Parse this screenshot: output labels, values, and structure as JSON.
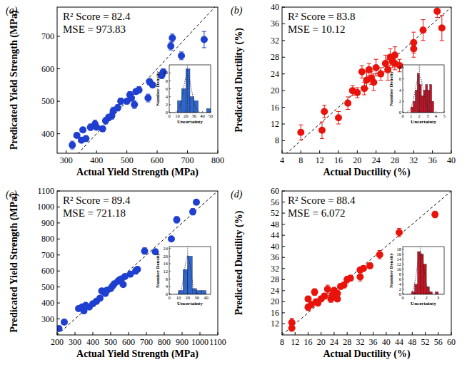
{
  "chart_data": [
    {
      "type": "scatter",
      "title": "(a)",
      "x_label": "Actual Yield Strength (MPa)",
      "y_label": "Predicated Yield Strength (MPa)",
      "annotations": [
        "R² Score = 82.4",
        "MSE = 973.83"
      ],
      "color": "#1f3fd0",
      "marker": "circle",
      "grid": false,
      "xlim": [
        270,
        800
      ],
      "xticks": [
        300,
        400,
        500,
        600,
        700,
        800
      ],
      "ylim": [
        340,
        790
      ],
      "yticks": [
        400,
        500,
        600,
        700
      ],
      "x": [
        320,
        335,
        350,
        355,
        365,
        380,
        395,
        400,
        420,
        430,
        440,
        450,
        455,
        470,
        480,
        500,
        510,
        515,
        525,
        530,
        540,
        570,
        575,
        585,
        615,
        620,
        645,
        650,
        680,
        755
      ],
      "values": [
        365,
        395,
        380,
        412,
        385,
        420,
        430,
        420,
        415,
        440,
        450,
        455,
        470,
        480,
        500,
        500,
        520,
        510,
        490,
        530,
        535,
        510,
        560,
        550,
        580,
        590,
        670,
        695,
        640,
        690
      ],
      "errors": [
        12,
        8,
        8,
        8,
        8,
        10,
        12,
        8,
        8,
        10,
        10,
        10,
        12,
        10,
        10,
        8,
        10,
        10,
        12,
        8,
        10,
        12,
        10,
        8,
        10,
        10,
        12,
        12,
        12,
        25
      ],
      "inset": {
        "type": "histogram",
        "x_label": "Uncertainty",
        "y_label": "Number Density",
        "color": "#2f66cc",
        "xlim": [
          0,
          50
        ],
        "xticks": [
          0,
          10,
          20,
          30,
          40,
          50
        ],
        "ylim": [
          0,
          12
        ],
        "yticks": [
          0,
          2,
          4,
          6,
          8,
          10
        ],
        "bins": [
          5,
          10,
          15,
          20,
          25,
          30,
          35,
          40,
          45,
          50
        ],
        "values": [
          0,
          3,
          6,
          11,
          4,
          3,
          0,
          0,
          1
        ],
        "fit": {
          "mean": 22,
          "sd": 5,
          "peak": 9.5
        }
      }
    },
    {
      "type": "scatter",
      "title": "(b)",
      "x_label": "Actual Ductility (%)",
      "y_label": "Predicated Ductility (%)",
      "annotations": [
        "R² Score = 83.8",
        "MSE = 10.12"
      ],
      "color": "#e8140c",
      "marker": "circle",
      "grid": false,
      "xlim": [
        4,
        40
      ],
      "xticks": [
        4,
        8,
        12,
        16,
        20,
        24,
        28,
        32,
        36,
        40
      ],
      "ylim": [
        5,
        40
      ],
      "yticks": [
        8,
        12,
        16,
        20,
        24,
        28,
        32,
        36,
        40
      ],
      "x": [
        8,
        12.5,
        13,
        16,
        18,
        19,
        20,
        21,
        21.5,
        22,
        22.5,
        23,
        23.5,
        24,
        25,
        26,
        26.5,
        27,
        27.5,
        28,
        28,
        29,
        32,
        32,
        34,
        37,
        38
      ],
      "values": [
        10,
        10.5,
        15,
        13.5,
        17,
        20,
        19.5,
        24.5,
        20.5,
        22.5,
        25,
        23,
        22,
        25.5,
        24,
        26.5,
        25,
        28,
        27,
        26.5,
        28.5,
        26,
        30,
        31.5,
        34.5,
        39,
        35
      ],
      "errors": [
        1.8,
        2,
        1.5,
        1.5,
        1.5,
        1.2,
        1.2,
        1.5,
        1.5,
        2,
        1.5,
        1.5,
        2,
        2,
        1.5,
        2,
        2.5,
        2,
        1.5,
        1.5,
        2,
        1.5,
        2,
        2.5,
        2.5,
        1.5,
        3
      ],
      "inset": {
        "type": "histogram",
        "x_label": "Uncertainty",
        "y_label": "Number Density",
        "color": "#c8141e",
        "xlim": [
          0,
          5
        ],
        "xticks": [
          0,
          1,
          2,
          3,
          4,
          5
        ],
        "ylim": [
          0,
          8.5
        ],
        "yticks": [
          0,
          2,
          4,
          6,
          8
        ],
        "bins": [
          1,
          1.25,
          1.5,
          1.75,
          2,
          2.25,
          2.5,
          2.75,
          3,
          3.25,
          3.5,
          3.75
        ],
        "values": [
          1,
          2,
          4,
          7,
          5,
          3,
          4,
          5,
          4,
          5,
          2
        ],
        "fit": {
          "mean": 2,
          "sd": 0.5,
          "peak": 6.5
        }
      }
    },
    {
      "type": "scatter",
      "title": "(c)",
      "x_label": "Actual Yield Strength (MPa)",
      "y_label": "Predicated Yield Strength (MPa)",
      "annotations": [
        "R² Score = 89.4",
        "MSE = 721.18"
      ],
      "color": "#1f3fd0",
      "marker": "circle",
      "grid": false,
      "xlim": [
        200,
        1100
      ],
      "xticks": [
        200,
        300,
        400,
        500,
        600,
        700,
        800,
        900,
        1000,
        1100
      ],
      "ylim": [
        200,
        1100
      ],
      "yticks": [
        300,
        400,
        500,
        600,
        700,
        800,
        900,
        1000,
        1100
      ],
      "x": [
        210,
        240,
        320,
        340,
        350,
        360,
        380,
        400,
        420,
        440,
        450,
        460,
        470,
        480,
        500,
        510,
        520,
        540,
        550,
        560,
        570,
        580,
        610,
        640,
        650,
        690,
        750,
        840,
        870,
        960,
        980
      ],
      "values": [
        240,
        280,
        365,
        375,
        350,
        385,
        375,
        395,
        410,
        430,
        475,
        470,
        460,
        480,
        490,
        505,
        520,
        535,
        545,
        550,
        515,
        565,
        580,
        600,
        610,
        725,
        720,
        800,
        920,
        970,
        1030
      ],
      "errors": [
        10,
        15,
        10,
        10,
        12,
        10,
        10,
        10,
        8,
        10,
        15,
        10,
        10,
        10,
        10,
        10,
        10,
        10,
        10,
        10,
        10,
        10,
        15,
        20,
        15,
        20,
        15,
        12,
        20,
        20,
        15
      ],
      "inset": {
        "type": "histogram",
        "x_label": "Uncertainty",
        "y_label": "Number Density",
        "color": "#2f66cc",
        "xlim": [
          0,
          45
        ],
        "xticks": [
          0,
          10,
          20,
          30,
          40
        ],
        "ylim": [
          0,
          25
        ],
        "yticks": [
          0,
          4,
          8,
          12,
          16,
          20,
          24
        ],
        "bins": [
          5,
          10,
          15,
          20,
          25,
          30,
          35,
          40
        ],
        "values": [
          0,
          2,
          13,
          20,
          3,
          2,
          2
        ],
        "fit": {
          "mean": 20,
          "sd": 3.5,
          "peak": 20
        }
      }
    },
    {
      "type": "scatter",
      "title": "(d)",
      "x_label": "Actual Ductility (%)",
      "y_label": "Predicated Ductility (%)",
      "annotations": [
        "R² Score = 88.4",
        "MSE = 6.072"
      ],
      "color": "#e8140c",
      "marker": "circle",
      "grid": false,
      "xlim": [
        8,
        60
      ],
      "xticks": [
        8,
        12,
        16,
        20,
        24,
        28,
        32,
        36,
        40,
        44,
        48,
        52,
        56,
        60
      ],
      "ylim": [
        8,
        60
      ],
      "yticks": [
        12,
        16,
        20,
        24,
        28,
        32,
        36,
        40,
        44,
        48,
        52,
        56,
        60
      ],
      "x": [
        11,
        11,
        16,
        16,
        17,
        18,
        18.5,
        19,
        20,
        21,
        22,
        23,
        23.5,
        24,
        25,
        25,
        26,
        27,
        28,
        29,
        32,
        32,
        33,
        35,
        38,
        44,
        55
      ],
      "values": [
        10.5,
        12.5,
        18,
        21,
        19,
        23.5,
        20,
        19.5,
        21,
        22,
        24.5,
        21,
        22.5,
        24,
        23,
        21,
        25.5,
        26,
        28,
        28.5,
        29,
        31.5,
        32,
        33,
        37,
        45,
        51.5
      ],
      "errors": [
        1.2,
        1.5,
        1.2,
        1,
        1,
        1.2,
        1,
        1,
        1,
        1,
        1.5,
        1.2,
        1,
        1.2,
        1,
        1,
        1,
        1,
        1.2,
        1,
        1.5,
        1,
        1,
        1,
        1.5,
        1.5,
        1.2
      ],
      "inset": {
        "type": "histogram",
        "x_label": "Uncertainty",
        "y_label": "Number Density",
        "color": "#c8141e",
        "xlim": [
          0,
          3.5
        ],
        "xticks": [
          0,
          1,
          2,
          3
        ],
        "ylim": [
          0,
          19
        ],
        "yticks": [
          0,
          2,
          4,
          6,
          8,
          10,
          12,
          14,
          16,
          18
        ],
        "bins": [
          0.75,
          1,
          1.25,
          1.5,
          1.75,
          2,
          2.25,
          2.5,
          2.75,
          3
        ],
        "values": [
          1,
          4,
          17,
          16,
          12,
          3,
          1,
          0,
          1
        ],
        "fit": {
          "mean": 1.5,
          "sd": 0.3,
          "peak": 17
        }
      }
    }
  ]
}
